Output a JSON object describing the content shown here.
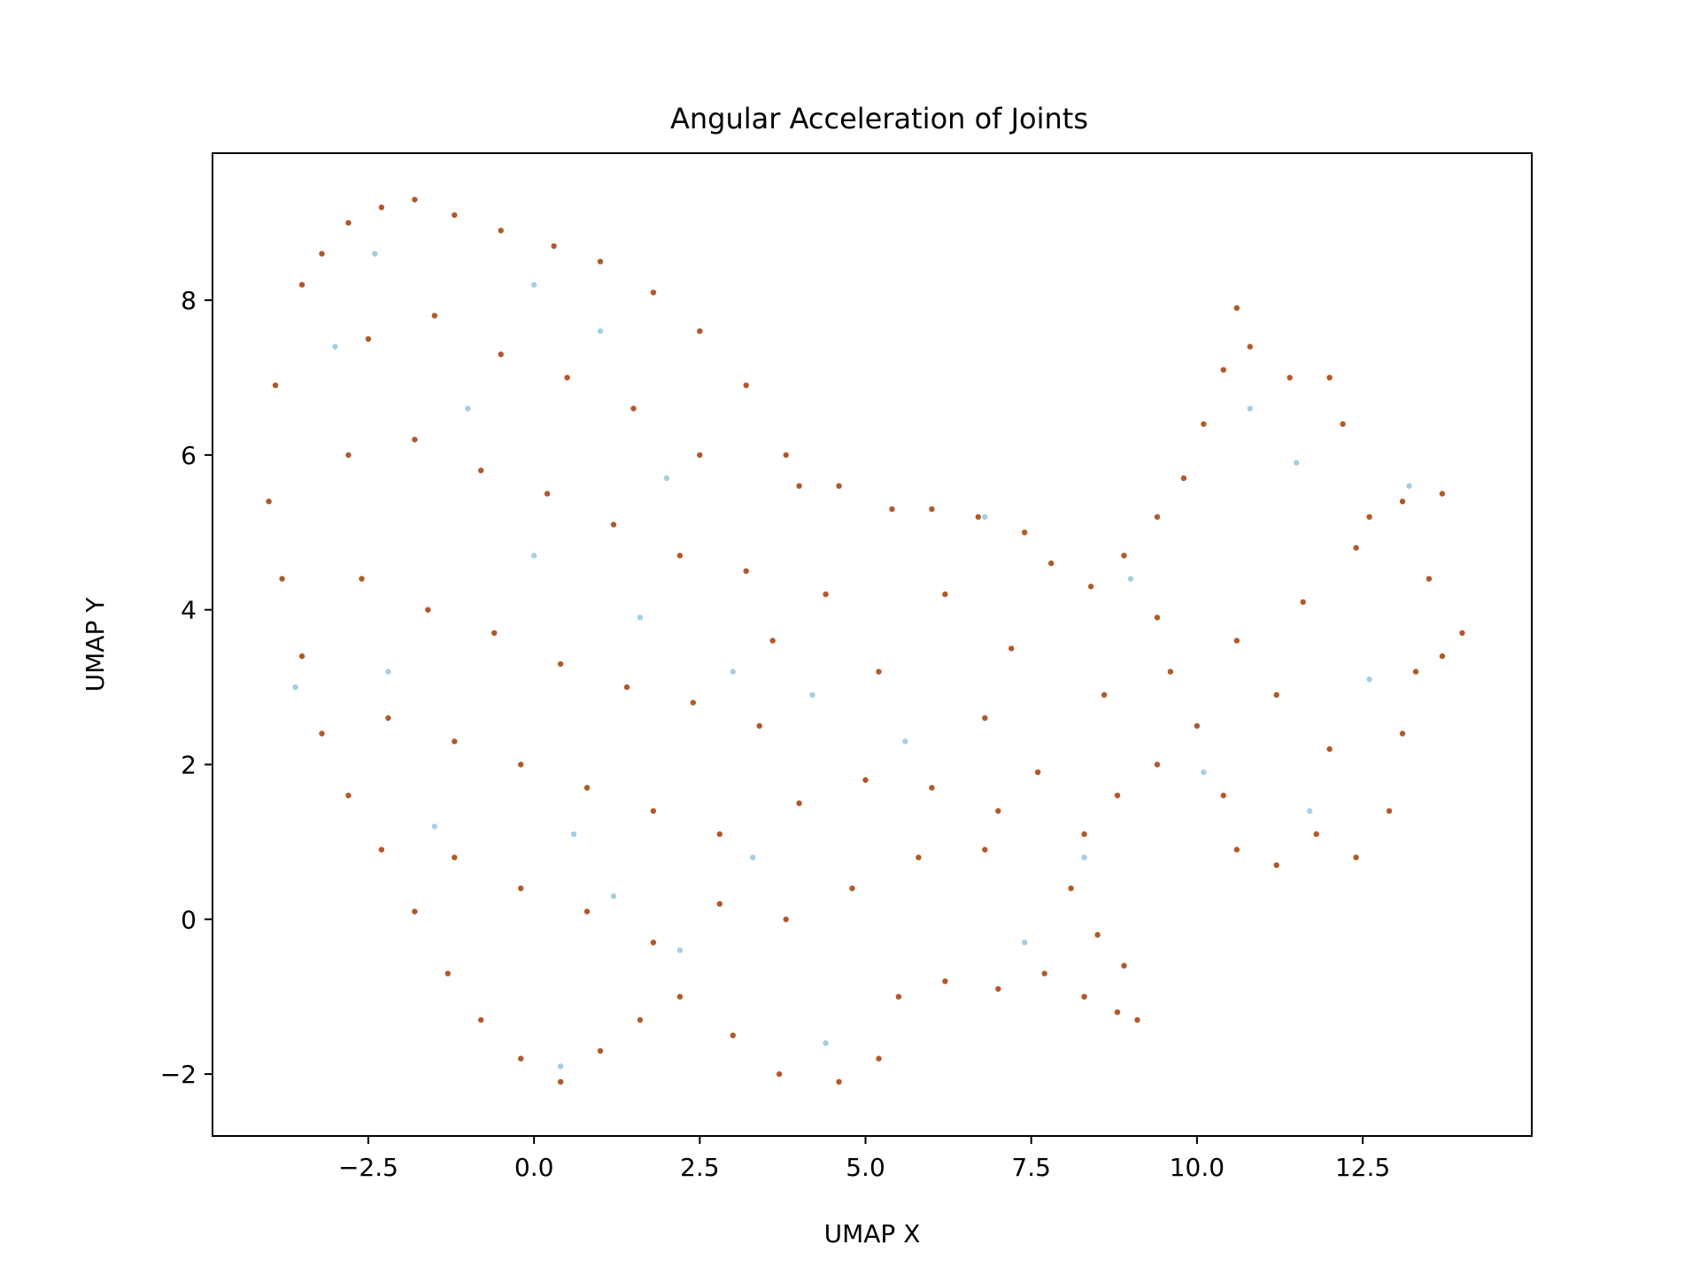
{
  "chart_data": {
    "type": "scatter",
    "title": "Angular Acceleration of Joints",
    "xlabel": "UMAP X",
    "ylabel": "UMAP Y",
    "xlim": [
      -4.85,
      15.05
    ],
    "ylim": [
      -2.8,
      9.9
    ],
    "xticks": [
      -2.5,
      0.0,
      2.5,
      5.0,
      7.5,
      10.0,
      12.5
    ],
    "xtick_labels": [
      "−2.5",
      "0.0",
      "2.5",
      "5.0",
      "7.5",
      "10.0",
      "12.5"
    ],
    "yticks": [
      -2,
      0,
      2,
      4,
      6,
      8
    ],
    "ytick_labels": [
      "−2",
      "0",
      "2",
      "4",
      "6",
      "8"
    ],
    "grid": false,
    "legend": "none",
    "point_colors": [
      "#b15928",
      "#a6cee3"
    ],
    "series": [
      {
        "color": "#b15928",
        "points": [
          [
            -3.5,
            8.2
          ],
          [
            -3.2,
            8.6
          ],
          [
            -2.8,
            9.0
          ],
          [
            -2.3,
            9.2
          ],
          [
            -1.8,
            9.3
          ],
          [
            -1.2,
            9.1
          ],
          [
            -0.5,
            8.9
          ],
          [
            0.3,
            8.7
          ],
          [
            1.0,
            8.5
          ],
          [
            1.8,
            8.1
          ],
          [
            2.5,
            7.6
          ],
          [
            3.2,
            6.9
          ],
          [
            3.8,
            6.0
          ],
          [
            -3.9,
            6.9
          ],
          [
            -4.0,
            5.4
          ],
          [
            -3.8,
            4.4
          ],
          [
            -3.5,
            3.4
          ],
          [
            -3.2,
            2.4
          ],
          [
            -2.8,
            1.6
          ],
          [
            -2.3,
            0.9
          ],
          [
            -1.8,
            0.1
          ],
          [
            -1.3,
            -0.7
          ],
          [
            -0.8,
            -1.3
          ],
          [
            -0.2,
            -1.8
          ],
          [
            0.4,
            -2.1
          ],
          [
            1.0,
            -1.7
          ],
          [
            1.6,
            -1.3
          ],
          [
            2.2,
            -1.0
          ],
          [
            3.0,
            -1.5
          ],
          [
            3.7,
            -2.0
          ],
          [
            4.6,
            -2.1
          ],
          [
            5.2,
            -1.8
          ],
          [
            5.5,
            -1.0
          ],
          [
            6.2,
            -0.8
          ],
          [
            7.0,
            -0.9
          ],
          [
            7.7,
            -0.7
          ],
          [
            8.3,
            -1.0
          ],
          [
            8.8,
            -1.2
          ],
          [
            9.1,
            -1.3
          ],
          [
            8.9,
            -0.6
          ],
          [
            8.5,
            -0.2
          ],
          [
            8.1,
            0.4
          ],
          [
            8.3,
            1.1
          ],
          [
            8.8,
            1.6
          ],
          [
            9.4,
            2.0
          ],
          [
            10.0,
            2.5
          ],
          [
            10.4,
            1.6
          ],
          [
            10.6,
            0.9
          ],
          [
            11.2,
            0.7
          ],
          [
            11.8,
            1.1
          ],
          [
            12.4,
            0.8
          ],
          [
            12.9,
            1.4
          ],
          [
            13.1,
            2.4
          ],
          [
            13.3,
            3.2
          ],
          [
            13.7,
            3.4
          ],
          [
            14.0,
            3.7
          ],
          [
            13.5,
            4.4
          ],
          [
            13.7,
            5.5
          ],
          [
            13.1,
            5.4
          ],
          [
            12.6,
            5.2
          ],
          [
            12.2,
            6.4
          ],
          [
            12.0,
            7.0
          ],
          [
            11.4,
            7.0
          ],
          [
            10.8,
            7.4
          ],
          [
            10.6,
            7.9
          ],
          [
            10.4,
            7.1
          ],
          [
            10.1,
            6.4
          ],
          [
            9.8,
            5.7
          ],
          [
            9.4,
            5.2
          ],
          [
            8.9,
            4.7
          ],
          [
            8.4,
            4.3
          ],
          [
            7.8,
            4.6
          ],
          [
            7.4,
            5.0
          ],
          [
            6.7,
            5.2
          ],
          [
            6.0,
            5.3
          ],
          [
            5.4,
            5.3
          ],
          [
            4.6,
            5.6
          ],
          [
            4.0,
            5.6
          ],
          [
            -2.5,
            7.5
          ],
          [
            -1.5,
            7.8
          ],
          [
            -0.5,
            7.3
          ],
          [
            0.5,
            7.0
          ],
          [
            1.5,
            6.6
          ],
          [
            2.5,
            6.0
          ],
          [
            -2.8,
            6.0
          ],
          [
            -1.8,
            6.2
          ],
          [
            -0.8,
            5.8
          ],
          [
            0.2,
            5.5
          ],
          [
            1.2,
            5.1
          ],
          [
            2.2,
            4.7
          ],
          [
            3.2,
            4.5
          ],
          [
            -2.6,
            4.4
          ],
          [
            -1.6,
            4.0
          ],
          [
            -0.6,
            3.7
          ],
          [
            0.4,
            3.3
          ],
          [
            1.4,
            3.0
          ],
          [
            2.4,
            2.8
          ],
          [
            3.4,
            2.5
          ],
          [
            -2.2,
            2.6
          ],
          [
            -1.2,
            2.3
          ],
          [
            -0.2,
            2.0
          ],
          [
            0.8,
            1.7
          ],
          [
            1.8,
            1.4
          ],
          [
            2.8,
            1.1
          ],
          [
            4.0,
            1.5
          ],
          [
            5.0,
            1.8
          ],
          [
            6.0,
            1.7
          ],
          [
            7.0,
            1.4
          ],
          [
            -1.2,
            0.8
          ],
          [
            -0.2,
            0.4
          ],
          [
            0.8,
            0.1
          ],
          [
            1.8,
            -0.3
          ],
          [
            2.8,
            0.2
          ],
          [
            3.8,
            0.0
          ],
          [
            4.8,
            0.4
          ],
          [
            5.8,
            0.8
          ],
          [
            6.8,
            0.9
          ],
          [
            7.6,
            1.9
          ],
          [
            8.6,
            2.9
          ],
          [
            9.6,
            3.2
          ],
          [
            10.6,
            3.6
          ],
          [
            11.6,
            4.1
          ],
          [
            12.4,
            4.8
          ],
          [
            11.2,
            2.9
          ],
          [
            12.0,
            2.2
          ],
          [
            9.4,
            3.9
          ],
          [
            6.8,
            2.6
          ],
          [
            7.2,
            3.5
          ],
          [
            5.2,
            3.2
          ],
          [
            4.4,
            4.2
          ],
          [
            3.6,
            3.6
          ],
          [
            6.2,
            4.2
          ]
        ]
      },
      {
        "color": "#a6cee3",
        "points": [
          [
            -3.0,
            7.4
          ],
          [
            -1.0,
            6.6
          ],
          [
            1.0,
            7.6
          ],
          [
            2.0,
            5.7
          ],
          [
            -2.2,
            3.2
          ],
          [
            0.0,
            4.7
          ],
          [
            1.6,
            3.9
          ],
          [
            3.0,
            3.2
          ],
          [
            -1.5,
            1.2
          ],
          [
            0.6,
            1.1
          ],
          [
            2.2,
            -0.4
          ],
          [
            0.4,
            -1.9
          ],
          [
            3.3,
            0.8
          ],
          [
            4.4,
            -1.6
          ],
          [
            5.6,
            2.3
          ],
          [
            6.8,
            5.2
          ],
          [
            8.3,
            0.8
          ],
          [
            10.8,
            6.6
          ],
          [
            11.5,
            5.9
          ],
          [
            13.2,
            5.6
          ],
          [
            12.6,
            3.1
          ],
          [
            10.1,
            1.9
          ],
          [
            11.7,
            1.4
          ],
          [
            7.4,
            -0.3
          ],
          [
            -3.6,
            3.0
          ],
          [
            -2.4,
            8.6
          ],
          [
            0.0,
            8.2
          ],
          [
            1.2,
            0.3
          ],
          [
            4.2,
            2.9
          ],
          [
            9.0,
            4.4
          ]
        ]
      }
    ]
  }
}
